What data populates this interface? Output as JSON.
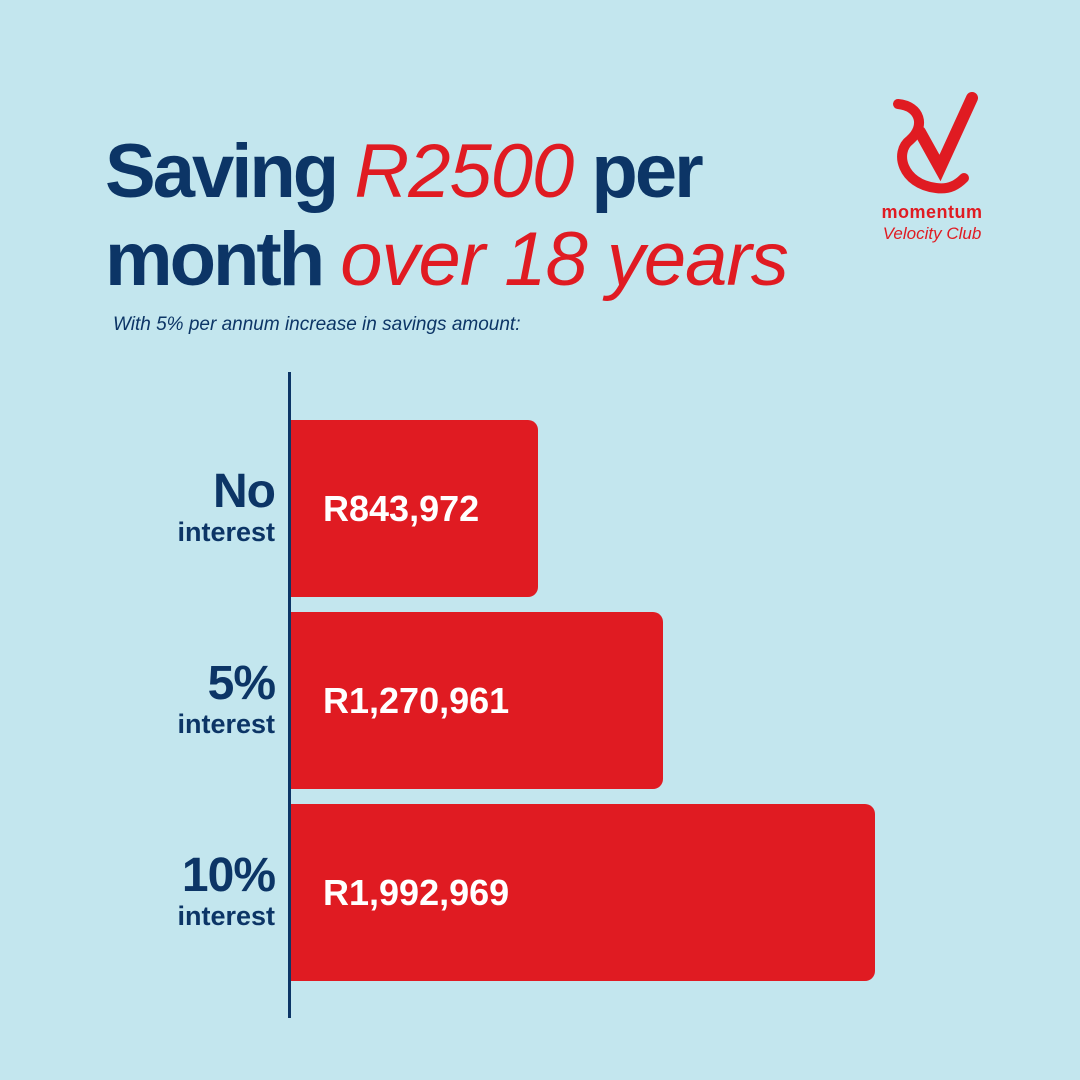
{
  "title": {
    "line1_part1": "Saving ",
    "line1_accent": "R2500",
    "line1_part2": " per",
    "line2_part1": "month ",
    "line2_accent": "over 18 years"
  },
  "subtitle": "With 5% per annum increase in savings amount:",
  "logo": {
    "icon": "momentum-logo-icon",
    "brand": "momentum",
    "sub": "Velocity Club"
  },
  "colors": {
    "background": "#c3e6ee",
    "navy": "#0c3566",
    "red": "#e01b22"
  },
  "chart_data": {
    "type": "bar",
    "orientation": "horizontal",
    "categories": [
      {
        "big": "No",
        "small": "interest"
      },
      {
        "big": "5%",
        "small": "interest"
      },
      {
        "big": "10%",
        "small": "interest"
      }
    ],
    "values": [
      843972,
      1270961,
      1992969
    ],
    "value_labels": [
      "R843,972",
      "R1,270,961",
      "R1,992,969"
    ],
    "xlim": [
      0,
      2000000
    ],
    "grid": false
  }
}
